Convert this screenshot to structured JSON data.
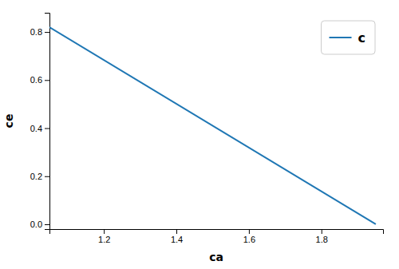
{
  "chart_data": {
    "type": "line",
    "x": [
      1.05,
      1.95
    ],
    "series": [
      {
        "name": "c",
        "color": "#1f77b4",
        "values": [
          0.82,
          0.0
        ]
      }
    ],
    "xlabel": "ca",
    "ylabel": "ce",
    "xlim": [
      1.05,
      1.97
    ],
    "ylim": [
      -0.02,
      0.88
    ],
    "xticks": [
      1.2,
      1.4,
      1.6,
      1.8
    ],
    "yticks": [
      {
        "value": 0.0,
        "label": "0.0"
      },
      0.2,
      0.4,
      0.6,
      0.8
    ],
    "legend": "upper right"
  }
}
